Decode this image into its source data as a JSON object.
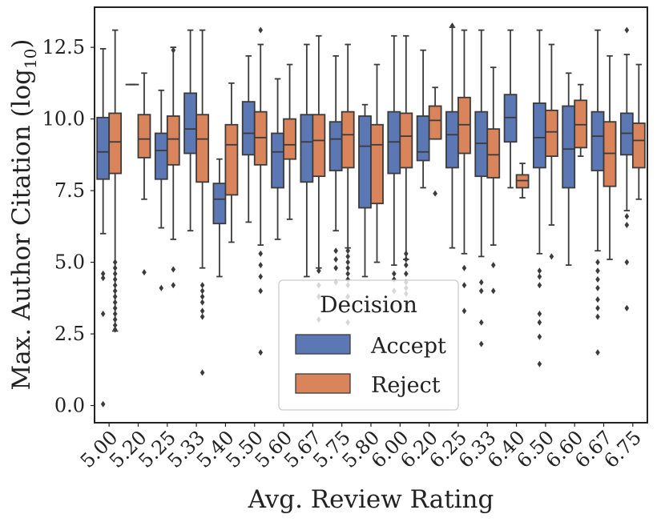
{
  "chart_data": {
    "type": "boxplot",
    "title": "",
    "xlabel": "Avg. Review Rating",
    "ylabel_main": "Max. Author Citation (log",
    "ylabel_sub": "10",
    "ylabel_close": ")",
    "ylim": [
      -0.6,
      13.9
    ],
    "yticks": [
      0.0,
      2.5,
      5.0,
      7.5,
      10.0,
      12.5
    ],
    "ytick_labels": [
      "0.0",
      "2.5",
      "5.0",
      "7.5",
      "10.0",
      "12.5"
    ],
    "categories": [
      "5.00",
      "5.20",
      "5.25",
      "5.33",
      "5.40",
      "5.50",
      "5.60",
      "5.67",
      "5.75",
      "5.80",
      "6.00",
      "6.20",
      "6.25",
      "6.33",
      "6.40",
      "6.50",
      "6.60",
      "6.67",
      "6.75"
    ],
    "legend": {
      "title": "Decision",
      "position": "lower-center"
    },
    "colors": {
      "accept": "#5b78b4",
      "reject": "#d9845a",
      "line": "#3b3b3b",
      "frame": "#222222"
    },
    "series": [
      {
        "name": "Accept",
        "boxes": [
          {
            "whislo": 6.0,
            "q1": 7.9,
            "med": 8.85,
            "q3": 10.05,
            "whishi": 12.45,
            "fliers": [
              4.6,
              4.45,
              3.2,
              0.05
            ]
          },
          {
            "whislo": 11.2,
            "q1": 11.2,
            "med": 11.2,
            "q3": 11.2,
            "whishi": 11.2,
            "fliers": []
          },
          {
            "whislo": 6.2,
            "q1": 7.9,
            "med": 8.9,
            "q3": 9.5,
            "whishi": 11.0,
            "fliers": [
              4.1
            ]
          },
          {
            "whislo": 6.1,
            "q1": 8.8,
            "med": 9.65,
            "q3": 10.9,
            "whishi": 13.1,
            "fliers": []
          },
          {
            "whislo": 4.5,
            "q1": 6.35,
            "med": 7.2,
            "q3": 7.75,
            "whishi": 8.6,
            "fliers": []
          },
          {
            "whislo": 6.4,
            "q1": 8.75,
            "med": 9.5,
            "q3": 10.6,
            "whishi": 12.2,
            "fliers": []
          },
          {
            "whislo": 5.8,
            "q1": 7.6,
            "med": 8.85,
            "q3": 9.5,
            "whishi": 11.4,
            "fliers": []
          },
          {
            "whislo": 4.5,
            "q1": 7.8,
            "med": 9.2,
            "q3": 10.15,
            "whishi": 12.6,
            "fliers": []
          },
          {
            "whislo": 6.1,
            "q1": 8.2,
            "med": 9.3,
            "q3": 9.9,
            "whishi": 12.2,
            "fliers": [
              5.4,
              5.1,
              4.8,
              4.3
            ]
          },
          {
            "whislo": 4.5,
            "q1": 6.9,
            "med": 9.05,
            "q3": 10.1,
            "whishi": 10.5,
            "fliers": []
          },
          {
            "whislo": 4.9,
            "q1": 8.1,
            "med": 9.2,
            "q3": 10.25,
            "whishi": 12.9,
            "fliers": [
              4.6,
              4.4,
              4.0
            ]
          },
          {
            "whislo": 7.6,
            "q1": 8.55,
            "med": 8.85,
            "q3": 10.1,
            "whishi": 12.4,
            "fliers": []
          },
          {
            "whislo": 5.5,
            "q1": 8.3,
            "med": 9.45,
            "q3": 10.25,
            "whishi": 13.2,
            "fliers": [
              13.25
            ]
          },
          {
            "whislo": 5.2,
            "q1": 8.0,
            "med": 9.15,
            "q3": 10.25,
            "whishi": 13.1,
            "fliers": [
              4.3,
              4.0,
              2.9,
              2.15
            ]
          },
          {
            "whislo": 7.6,
            "q1": 9.2,
            "med": 10.05,
            "q3": 10.85,
            "whishi": 13.1,
            "fliers": []
          },
          {
            "whislo": 5.3,
            "q1": 8.3,
            "med": 9.35,
            "q3": 10.55,
            "whishi": 13.1,
            "fliers": [
              4.7,
              4.5,
              4.2,
              3.2,
              2.9,
              2.4,
              1.45
            ]
          },
          {
            "whislo": 4.9,
            "q1": 7.6,
            "med": 8.95,
            "q3": 10.45,
            "whishi": 11.6,
            "fliers": []
          },
          {
            "whislo": 5.4,
            "q1": 8.2,
            "med": 9.4,
            "q3": 10.25,
            "whishi": 13.1,
            "fliers": [
              5.0,
              4.7,
              4.4,
              4.1,
              3.7,
              3.4,
              3.1,
              1.85
            ]
          },
          {
            "whislo": 6.8,
            "q1": 8.75,
            "med": 9.5,
            "q3": 10.2,
            "whishi": 12.25,
            "fliers": [
              13.1,
              6.6,
              6.3,
              5.0,
              3.4
            ]
          }
        ]
      },
      {
        "name": "Reject",
        "boxes": [
          {
            "whislo": 2.6,
            "q1": 8.1,
            "med": 9.2,
            "q3": 10.2,
            "whishi": 13.1,
            "fliers": [
              5.0,
              4.8,
              4.6,
              4.4,
              4.2,
              4.0,
              3.8,
              3.6,
              3.4,
              3.2,
              3.0,
              2.8,
              2.65
            ]
          },
          {
            "whislo": 7.2,
            "q1": 8.65,
            "med": 9.3,
            "q3": 10.15,
            "whishi": 11.6,
            "fliers": [
              4.65
            ]
          },
          {
            "whislo": 5.8,
            "q1": 8.4,
            "med": 9.3,
            "q3": 10.1,
            "whishi": 12.5,
            "fliers": [
              12.4,
              4.75,
              4.2
            ]
          },
          {
            "whislo": 4.8,
            "q1": 7.8,
            "med": 9.3,
            "q3": 10.15,
            "whishi": 13.1,
            "fliers": [
              4.2,
              4.0,
              3.8,
              3.6,
              3.3,
              3.1,
              1.15
            ]
          },
          {
            "whislo": 5.7,
            "q1": 7.35,
            "med": 9.1,
            "q3": 9.8,
            "whishi": 11.25,
            "fliers": []
          },
          {
            "whislo": 5.6,
            "q1": 8.4,
            "med": 9.35,
            "q3": 10.25,
            "whishi": 12.6,
            "fliers": [
              13.1,
              5.3,
              4.9,
              4.5,
              4.0,
              1.85
            ]
          },
          {
            "whislo": 6.5,
            "q1": 8.6,
            "med": 9.1,
            "q3": 10.0,
            "whishi": 11.9,
            "fliers": []
          },
          {
            "whislo": 4.8,
            "q1": 8.0,
            "med": 9.25,
            "q3": 10.15,
            "whishi": 12.9,
            "fliers": [
              4.7,
              4.2,
              3.8,
              3.0
            ]
          },
          {
            "whislo": 5.5,
            "q1": 8.3,
            "med": 9.45,
            "q3": 10.25,
            "whishi": 12.6,
            "fliers": [
              5.4,
              5.2,
              5.0,
              4.8,
              4.6,
              4.4,
              4.2,
              3.8,
              2.9
            ]
          },
          {
            "whislo": 5.0,
            "q1": 7.05,
            "med": 9.1,
            "q3": 9.8,
            "whishi": 11.9,
            "fliers": []
          },
          {
            "whislo": 5.1,
            "q1": 8.3,
            "med": 9.4,
            "q3": 10.2,
            "whishi": 12.9,
            "fliers": [
              5.3,
              5.1,
              4.9,
              4.6,
              4.3,
              4.1,
              3.9
            ]
          },
          {
            "whislo": 9.3,
            "q1": 9.3,
            "med": 9.95,
            "q3": 10.45,
            "whishi": 11.1,
            "fliers": [
              7.4
            ]
          },
          {
            "whislo": 5.3,
            "q1": 8.8,
            "med": 9.8,
            "q3": 10.75,
            "whishi": 13.1,
            "fliers": [
              4.8,
              4.2,
              3.3
            ]
          },
          {
            "whislo": 5.6,
            "q1": 7.95,
            "med": 8.75,
            "q3": 9.65,
            "whishi": 11.8,
            "fliers": [
              4.9,
              4.0
            ]
          },
          {
            "whislo": 7.25,
            "q1": 7.6,
            "med": 7.85,
            "q3": 8.05,
            "whishi": 8.45,
            "fliers": []
          },
          {
            "whislo": 6.3,
            "q1": 8.7,
            "med": 9.55,
            "q3": 10.3,
            "whishi": 12.6,
            "fliers": [
              5.2
            ]
          },
          {
            "whislo": 8.7,
            "q1": 9.0,
            "med": 9.8,
            "q3": 10.65,
            "whishi": 11.2,
            "fliers": []
          },
          {
            "whislo": 5.1,
            "q1": 7.65,
            "med": 8.8,
            "q3": 9.9,
            "whishi": 12.2,
            "fliers": []
          },
          {
            "whislo": 7.2,
            "q1": 8.3,
            "med": 9.25,
            "q3": 9.85,
            "whishi": 11.9,
            "fliers": []
          }
        ]
      }
    ]
  }
}
